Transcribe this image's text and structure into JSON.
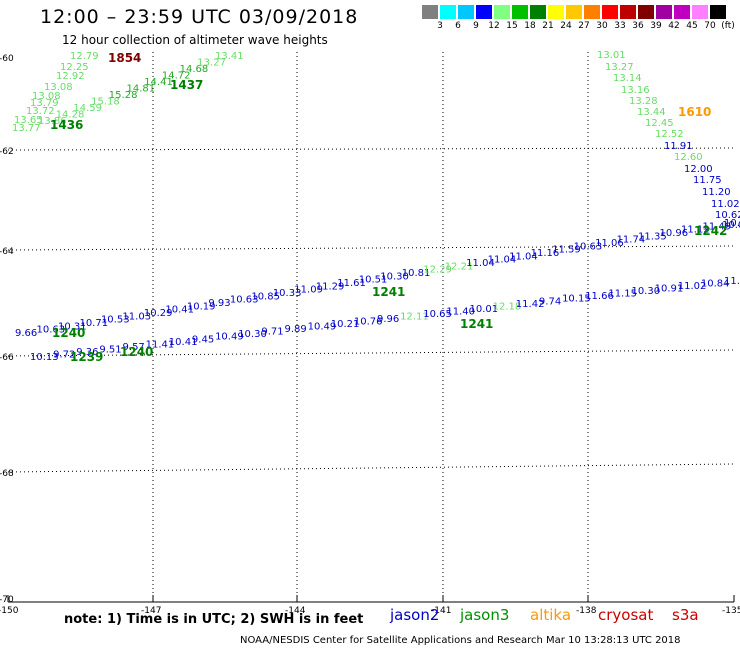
{
  "title": "12:00 – 23:59 UTC 03/09/2018",
  "subtitle": "12 hour collection of altimeter wave heights",
  "note": "note: 1) Time is in UTC; 2) SWH is in feet",
  "credit": "NOAA/NESDIS Center for Satellite Applications and Research    Mar 10 13:28:13 UTC 2018",
  "scale": {
    "unit": "(ft)",
    "colors": [
      "#808080",
      "#00ffff",
      "#00c8ff",
      "#0000ff",
      "#80ff80",
      "#00c000",
      "#008000",
      "#ffff00",
      "#ffc800",
      "#ff8000",
      "#ff0000",
      "#c00000",
      "#800000",
      "#a000a0",
      "#c000c0",
      "#ff80ff",
      "#000000"
    ],
    "labels": [
      "3",
      "6",
      "9",
      "12",
      "15",
      "18",
      "21",
      "24",
      "27",
      "30",
      "33",
      "36",
      "39",
      "42",
      "45",
      "70"
    ]
  },
  "legend": [
    {
      "name": "jason2",
      "color": "#0000c8"
    },
    {
      "name": "jason3",
      "color": "#009000"
    },
    {
      "name": "altika",
      "color": "#ff9900"
    },
    {
      "name": "cryosat",
      "color": "#cc0000"
    },
    {
      "name": "s3a",
      "color": "#cc0000"
    }
  ],
  "axes": {
    "lon_ticks": [
      "-150",
      "-147",
      "-144",
      "-141",
      "-138",
      "-135"
    ],
    "lat_ticks": [
      "-60",
      "-62",
      "-64",
      "-66",
      "-68",
      "-70"
    ]
  },
  "tracks": {
    "track_a": [
      "13.77",
      "13.65",
      "13.72",
      "13.79",
      "13.08",
      "13.08",
      "12.92",
      "12.25",
      "12.79"
    ],
    "track_b": [
      "13.86",
      "14.28",
      "14.59",
      "15.18",
      "15.28",
      "14.81",
      "14.41",
      "14.72",
      "14.68",
      "13.27",
      "13.41"
    ],
    "track_c": [
      "13.01",
      "13.27",
      "13.14",
      "13.16",
      "13.28",
      "13.44",
      "12.45",
      "12.52",
      "11.91",
      "12.60",
      "12.00",
      "11.75",
      "11.20",
      "11.02",
      "10.62",
      "10.07"
    ],
    "track_d": [
      "9.66",
      "10.63",
      "10.31",
      "10.71",
      "10.53",
      "11.03",
      "10.29",
      "10.41",
      "10.19",
      "9.93",
      "10.63",
      "10.85",
      "10.33",
      "11.09",
      "11.29",
      "11.61",
      "10.51",
      "10.30",
      "10.81",
      "12.29",
      "12.21",
      "11.04",
      "11.04",
      "11.04",
      "11.16",
      "11.59",
      "10.63",
      "11.06",
      "11.74",
      "11.35",
      "10.96",
      "11.12",
      "11.49",
      "10.07"
    ],
    "track_e": [
      "10.13",
      "9.72",
      "9.36",
      "9.51",
      "9.57",
      "11.41",
      "10.41",
      "9.45",
      "10.49",
      "10.30",
      "9.71",
      "9.89",
      "10.49",
      "10.21",
      "10.76",
      "9.96",
      "12.11",
      "10.65",
      "11.40",
      "10.01",
      "12.18",
      "11.42",
      "9.74",
      "10.15",
      "11.66",
      "11.15",
      "10.30",
      "10.91",
      "11.02",
      "10.84",
      "11.09"
    ]
  },
  "time_labels": [
    {
      "t": "1854",
      "color": "#800000"
    },
    {
      "t": "1437",
      "color": "#008000"
    },
    {
      "t": "1436",
      "color": "#008000"
    },
    {
      "t": "1610",
      "color": "#ff9900"
    },
    {
      "t": "1242",
      "color": "#008000"
    },
    {
      "t": "1241",
      "color": "#008000"
    },
    {
      "t": "1240",
      "color": "#008000"
    },
    {
      "t": "1241",
      "color": "#008000"
    },
    {
      "t": "1239",
      "color": "#008000"
    },
    {
      "t": "1240",
      "color": "#008000"
    }
  ]
}
